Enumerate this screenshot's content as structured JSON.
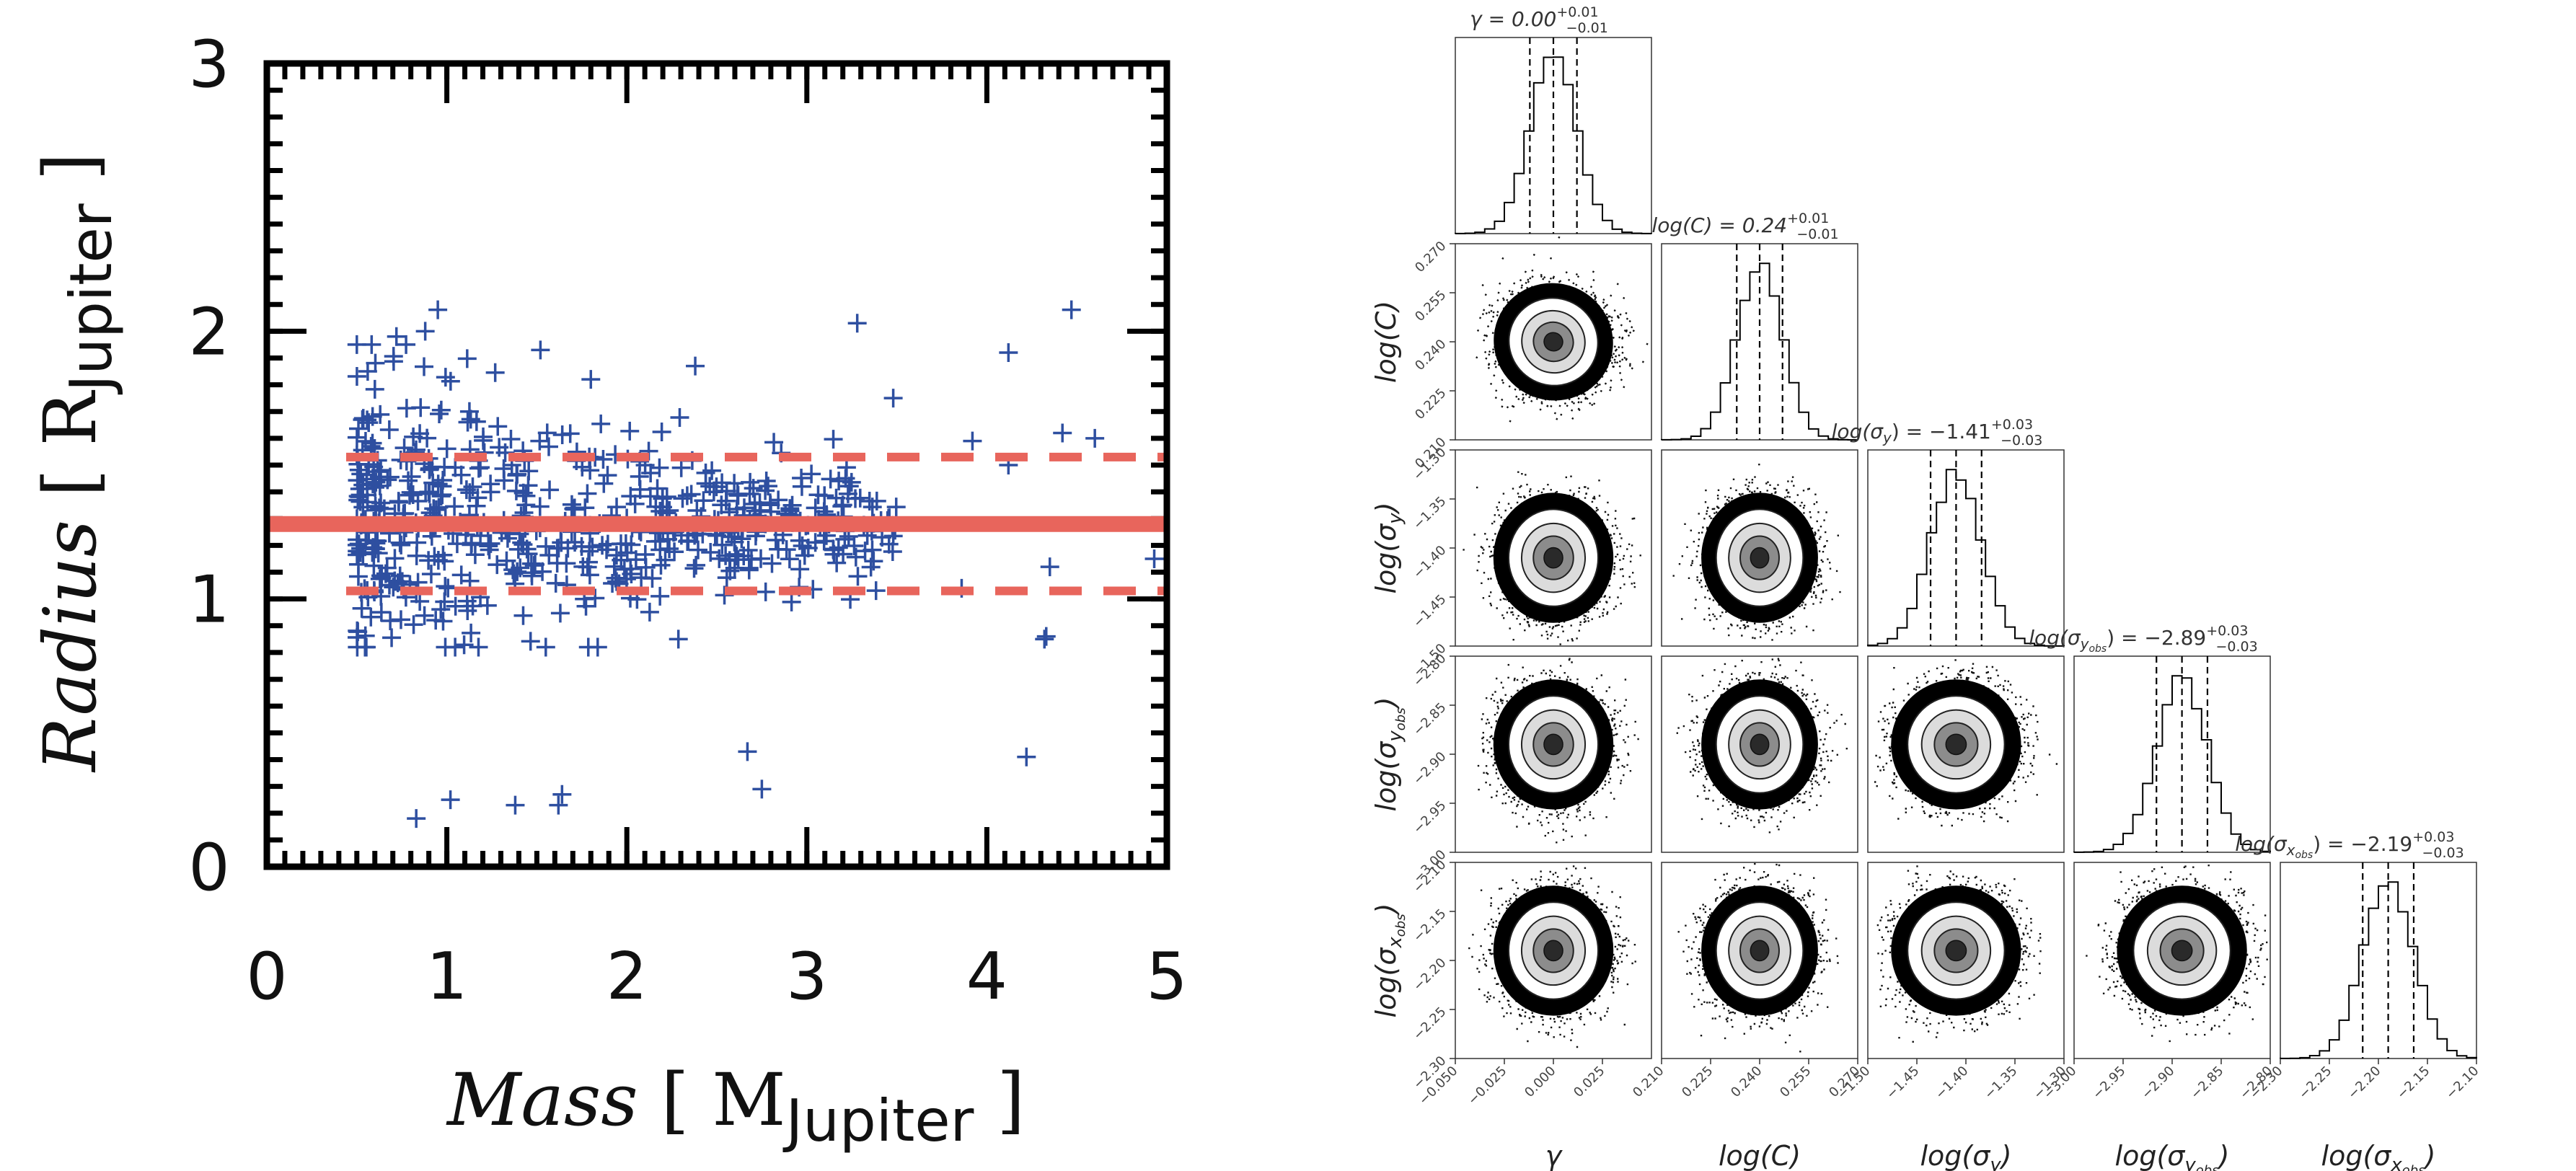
{
  "colors": {
    "scatter": "#2e4fa0",
    "fit": "#e8655c",
    "axis": "#000000",
    "corner": "#000000"
  },
  "chart_data": [
    {
      "type": "scatter",
      "title": "",
      "xlabel": {
        "main": "Mass",
        "unit_prefix": "[ M",
        "unit_sub": "Jupiter",
        "unit_suffix": " ]"
      },
      "ylabel": {
        "main": "Radius",
        "unit_prefix": "[ R",
        "unit_sub": "Jupiter",
        "unit_suffix": " ]"
      },
      "xlim": [
        0,
        5
      ],
      "ylim": [
        0,
        3
      ],
      "xticks": [
        "0",
        "1",
        "2",
        "3",
        "4",
        "5"
      ],
      "yticks": [
        "0",
        "1",
        "2",
        "3"
      ],
      "fit_line": {
        "y": 1.28,
        "style": "solid"
      },
      "band_lines": [
        {
          "y": 1.53,
          "style": "dashed"
        },
        {
          "y": 1.03,
          "style": "dashed"
        }
      ],
      "outliers": [
        {
          "x": 0.83,
          "y": 0.18
        },
        {
          "x": 1.02,
          "y": 0.25
        },
        {
          "x": 1.38,
          "y": 0.23
        },
        {
          "x": 1.62,
          "y": 0.23
        },
        {
          "x": 1.64,
          "y": 0.27
        },
        {
          "x": 2.67,
          "y": 0.43
        },
        {
          "x": 2.75,
          "y": 0.29
        },
        {
          "x": 4.22,
          "y": 0.41
        },
        {
          "x": 4.32,
          "y": 0.85
        },
        {
          "x": 4.33,
          "y": 0.86
        },
        {
          "x": 3.28,
          "y": 2.03
        },
        {
          "x": 4.47,
          "y": 2.08
        },
        {
          "x": 4.12,
          "y": 1.92
        },
        {
          "x": 2.38,
          "y": 1.87
        },
        {
          "x": 3.48,
          "y": 1.75
        },
        {
          "x": 4.42,
          "y": 1.62
        },
        {
          "x": 4.6,
          "y": 1.6
        },
        {
          "x": 3.92,
          "y": 1.59
        },
        {
          "x": 0.95,
          "y": 2.08
        },
        {
          "x": 0.88,
          "y": 2.0
        },
        {
          "x": 0.72,
          "y": 1.98
        },
        {
          "x": 1.52,
          "y": 1.93
        },
        {
          "x": 1.8,
          "y": 1.82
        },
        {
          "x": 4.93,
          "y": 1.15
        },
        {
          "x": 4.35,
          "y": 1.12
        },
        {
          "x": 4.12,
          "y": 1.5
        },
        {
          "x": 3.86,
          "y": 1.04
        }
      ],
      "cluster": {
        "count": 620,
        "x_range": [
          0.5,
          3.5
        ],
        "center_y": 1.28,
        "spread_y": 0.2
      }
    },
    {
      "type": "corner",
      "parameters": [
        {
          "label": "γ",
          "title": "γ = 0.00",
          "upper": "+0.01",
          "lower": "−0.01",
          "range": [
            -0.05,
            0.05
          ],
          "ticks": [
            "−0.050",
            "−0.025",
            "0.000",
            "0.025"
          ],
          "median": 0.0,
          "sigma": 0.012
        },
        {
          "label": "log(C)",
          "title": "log(C) = 0.24",
          "upper": "+0.01",
          "lower": "−0.01",
          "range": [
            0.21,
            0.27
          ],
          "ticks": [
            "0.210",
            "0.225",
            "0.240",
            "0.255",
            "0.270"
          ],
          "median": 0.24,
          "sigma": 0.007
        },
        {
          "label": "log(σ",
          "label_sub": "y",
          "label_sub2": "",
          "title": "log(σ",
          "title_sub": "y",
          "title_sub2": "",
          "title_rest": ") = −1.41",
          "upper": "+0.03",
          "lower": "−0.03",
          "range": [
            -1.5,
            -1.3
          ],
          "ticks": [
            "−1.50",
            "−1.45",
            "−1.40",
            "−1.35",
            "−1.30"
          ],
          "median": -1.41,
          "sigma": 0.026
        },
        {
          "label": "log(σ",
          "label_sub": "y",
          "label_sub2": "obs",
          "title": "log(σ",
          "title_sub": "y",
          "title_sub2": "obs",
          "title_rest": ") = −2.89",
          "upper": "+0.03",
          "lower": "−0.03",
          "range": [
            -3.0,
            -2.8
          ],
          "ticks": [
            "−3.00",
            "−2.95",
            "−2.90",
            "−2.85",
            "−2.80"
          ],
          "median": -2.89,
          "sigma": 0.026
        },
        {
          "label": "log(σ",
          "label_sub": "x",
          "label_sub2": "obs",
          "title": "log(σ",
          "title_sub": "x",
          "title_sub2": "obs",
          "title_rest": ") = −2.19",
          "upper": "+0.03",
          "lower": "−0.03",
          "range": [
            -2.3,
            -2.1
          ],
          "ticks": [
            "−2.30",
            "−2.25",
            "−2.20",
            "−2.15",
            "−2.10"
          ],
          "median": -2.19,
          "sigma": 0.026
        }
      ]
    }
  ]
}
